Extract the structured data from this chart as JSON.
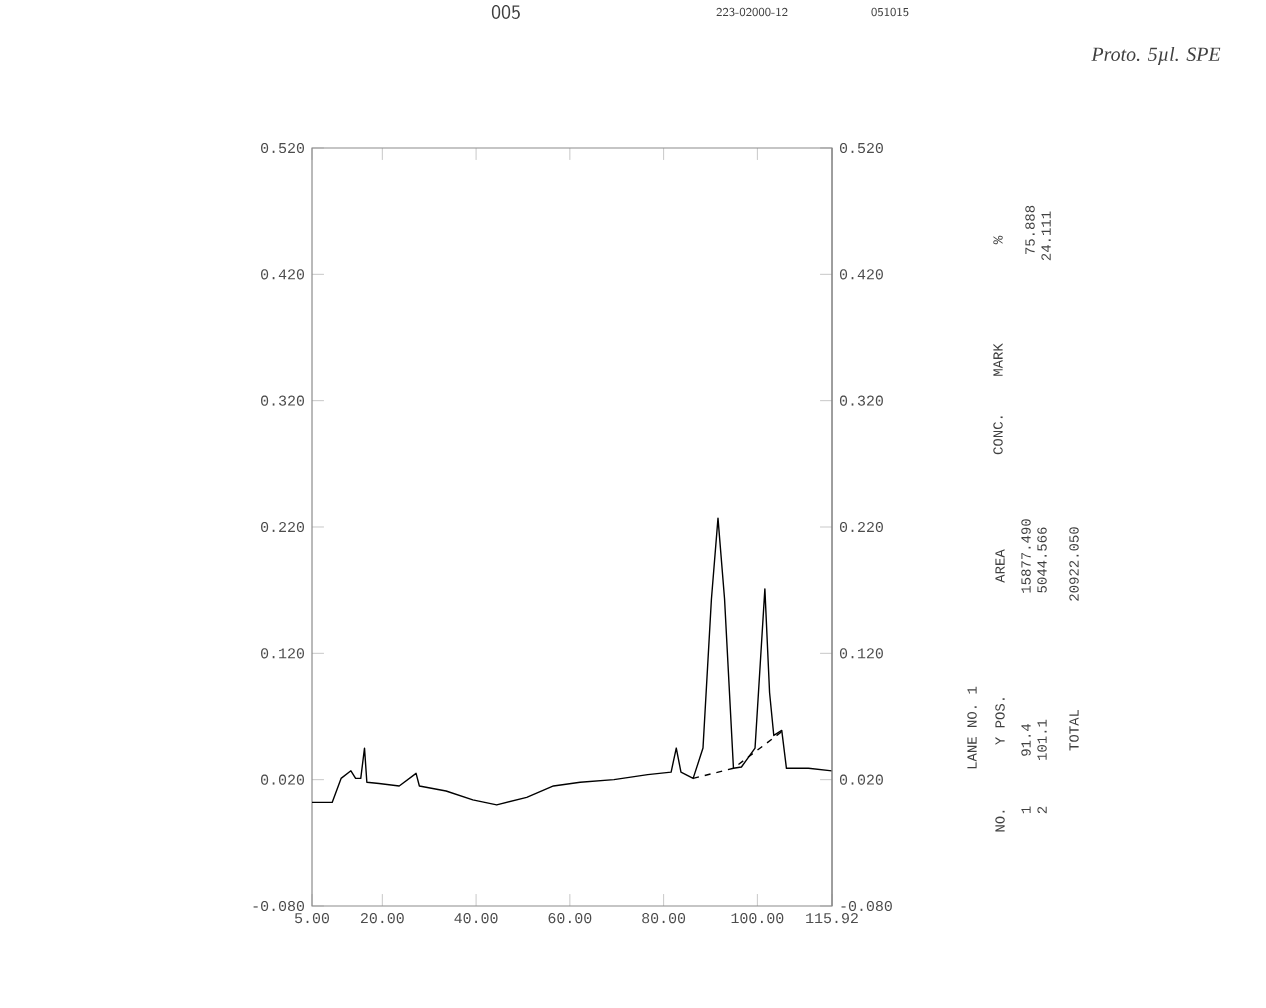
{
  "chart_data": {
    "type": "line",
    "xlim": [
      5,
      115.92
    ],
    "xticks": [
      {
        "value": 5,
        "label": "5.00"
      },
      {
        "value": 20,
        "label": "20.00"
      },
      {
        "value": 40,
        "label": "40.00"
      },
      {
        "value": 60,
        "label": "60.00"
      },
      {
        "value": 80,
        "label": "80.00"
      },
      {
        "value": 100,
        "label": "100.00"
      },
      115.92
    ],
    "ylim": [
      -0.08,
      0.52
    ],
    "yticks": [
      {
        "value": -0.08,
        "label": "-0.080"
      },
      {
        "value": 0.02,
        "label": "0.020"
      },
      {
        "value": 0.12,
        "label": "0.120"
      },
      {
        "value": 0.22,
        "label": "0.220"
      },
      {
        "value": 0.32,
        "label": "0.320"
      },
      {
        "value": 0.42,
        "label": "0.420"
      },
      {
        "value": 0.52,
        "label": "0.520"
      }
    ],
    "y2lim": [
      -0.08,
      0.52
    ],
    "y2ticks": [
      {
        "value": -0.08,
        "label": "-0.080"
      },
      {
        "value": 0.02,
        "label": "0.020"
      },
      {
        "value": 0.12,
        "label": "0.120"
      },
      {
        "value": 0.22,
        "label": "0.220"
      },
      {
        "value": 0.32,
        "label": "0.320"
      },
      {
        "value": 0.42,
        "label": "0.420"
      },
      {
        "value": 0.52,
        "label": "0.520"
      }
    ],
    "grid": false,
    "marker": "none",
    "series": [
      {
        "color": "#000000",
        "line_style": "solid",
        "x": [
          5,
          9.3,
          11.2,
          13.3,
          14.3,
          15.4,
          16.2,
          16.7,
          19.3,
          23.6,
          27.2,
          27.9,
          33.6,
          39.3,
          44.4,
          50.8,
          56.5,
          62.2,
          69.4,
          76.6,
          81.6,
          82.7,
          83.7,
          86.3,
          88.4,
          90.2,
          91.6,
          93.0,
          94.9,
          96.6,
          99.5,
          100.6,
          101.6,
          102.6,
          103.5,
          105.2,
          106.2,
          110.9,
          115.9
        ],
        "values": [
          0.002,
          0.002,
          0.021,
          0.027,
          0.021,
          0.021,
          0.045,
          0.018,
          0.017,
          0.015,
          0.025,
          0.015,
          0.011,
          0.004,
          0.0,
          0.006,
          0.015,
          0.018,
          0.02,
          0.024,
          0.026,
          0.045,
          0.026,
          0.021,
          0.045,
          0.163,
          0.227,
          0.163,
          0.029,
          0.03,
          0.045,
          0.111,
          0.171,
          0.089,
          0.055,
          0.059,
          0.029,
          0.029,
          0.027
        ]
      },
      {
        "color": "#000000",
        "line_style": "dashed",
        "x": [
          86.3,
          94.9,
          105.2
        ],
        "values": [
          0.021,
          0.029,
          0.058
        ]
      }
    ],
    "annotations": [
      "005",
      "223-02000-12",
      "051015",
      "Proto. 5µl. SPE",
      "LANE NO. 1",
      "NO.",
      "Y POS.",
      "AREA",
      "CONC.",
      "MARK",
      "%",
      "1",
      "91.4",
      "15877.490",
      "75.888",
      "2",
      "101.1",
      "5044.566",
      "24.111",
      "TOTAL",
      "20922.050"
    ]
  }
}
